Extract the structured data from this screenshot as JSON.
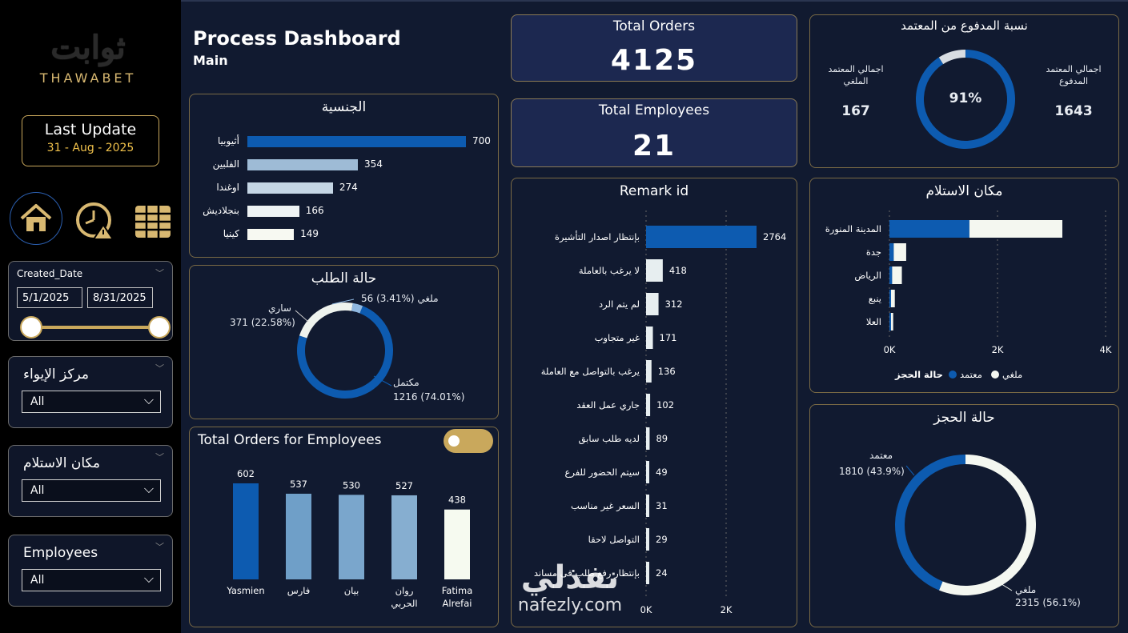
{
  "sidebar": {
    "logo_ar": "ثوابت",
    "logo_en": "THAWABET",
    "last_update_label": "Last Update",
    "last_update_date": "31 - Aug - 2025",
    "nav": [
      "home-icon",
      "alert-clock-icon",
      "table-icon"
    ],
    "date_slicer": {
      "label": "Created_Date",
      "from": "5/1/2025",
      "to": "8/31/2025"
    },
    "slicers": [
      {
        "label": "مركز الإيواء",
        "value": "All"
      },
      {
        "label": "مكان الاستلام",
        "value": "All"
      },
      {
        "label": "Employees",
        "value": "All"
      }
    ]
  },
  "header": {
    "title": "Process Dashboard",
    "subtitle": "Main"
  },
  "kpis": {
    "total_orders_label": "Total Orders",
    "total_orders": "4125",
    "total_employees_label": "Total Employees",
    "total_employees": "21"
  },
  "nationality": {
    "title": "الجنسية",
    "items": [
      {
        "label": "أثيوبيا",
        "value": 700,
        "color": "#0d5bb0"
      },
      {
        "label": "الفلبين",
        "value": 354,
        "color": "#9ebbd6"
      },
      {
        "label": "اوغندا",
        "value": 274,
        "color": "#c5d6e5"
      },
      {
        "label": "بنجلاديش",
        "value": 166,
        "color": "#eef3f4"
      },
      {
        "label": "كينيا",
        "value": 149,
        "color": "#f7f9f2"
      }
    ]
  },
  "order_status": {
    "title": "حالة الطلب",
    "slices": [
      {
        "label": "مكتمل",
        "value": 1216,
        "pct": "74.01%",
        "color": "#0d5bb0"
      },
      {
        "label": "ساري",
        "value": 371,
        "pct": "22.58%",
        "color": "#eef3ee"
      },
      {
        "label": "ملغي",
        "value": 56,
        "pct": "3.41%",
        "color": "#8fb7e0"
      }
    ],
    "labels": {
      "done": "مكتمل",
      "done_val": "1216 (74.01%)",
      "active": "ساري",
      "active_val": "371 (22.58%)",
      "cancel": "56 (3.41%) ملغي"
    }
  },
  "orders_by_employee": {
    "title": "Total Orders for Employees",
    "items": [
      {
        "label": "Yasmien",
        "value": 602,
        "color": "#0d5bb0"
      },
      {
        "label": "فارس",
        "value": 537,
        "color": "#6f9fc8"
      },
      {
        "label": "بيان",
        "value": 530,
        "color": "#7aa6cc"
      },
      {
        "label": "روان الحربي",
        "value": 527,
        "color": "#86aed0"
      },
      {
        "label": "Fatima Alrefai",
        "value": 438,
        "color": "#f6faf0"
      }
    ]
  },
  "remark": {
    "title": "Remark id",
    "items": [
      {
        "label": "بإنتظار اصدار التأشيرة",
        "value": 2764
      },
      {
        "label": "لا يرغب بالعاملة",
        "value": 418
      },
      {
        "label": "لم يتم الرد",
        "value": 312
      },
      {
        "label": "غير متجاوب",
        "value": 171
      },
      {
        "label": "يرغب بالتواصل مع العاملة",
        "value": 136
      },
      {
        "label": "جاري عمل العقد",
        "value": 102
      },
      {
        "label": "لديه طلب سابق",
        "value": 89
      },
      {
        "label": "سيتم الحضور للفرع",
        "value": 49
      },
      {
        "label": "السعر غير مناسب",
        "value": 31
      },
      {
        "label": "التواصل لاحقا",
        "value": 29
      },
      {
        "label": "بإنتظار رفع طلب فى مساند",
        "value": 24
      }
    ],
    "axis": [
      "0K",
      "2K"
    ]
  },
  "paid_ratio": {
    "title": "نسبة المدفوع من المعتمد",
    "pct": "91%",
    "pct_value": 0.91,
    "cancel_label": "اجمالي المعتمد الملغي",
    "cancel_value": "167",
    "paid_label": "اجمالي المعتمد المدفوع",
    "paid_value": "1643"
  },
  "pickup": {
    "title": "مكان الاستلام",
    "items": [
      {
        "label": "المدينة المنورة",
        "approved": 1480,
        "cancelled": 1720
      },
      {
        "label": "جدة",
        "approved": 80,
        "cancelled": 230
      },
      {
        "label": "الرياض",
        "approved": 50,
        "cancelled": 180
      },
      {
        "label": "ينبع",
        "approved": 20,
        "cancelled": 70
      },
      {
        "label": "العلا",
        "approved": 15,
        "cancelled": 40
      }
    ],
    "axis": [
      "0K",
      "2K",
      "4K"
    ],
    "legend_title": "حالة الحجز",
    "legend": [
      {
        "label": "معتمد",
        "color": "#0d5bb0"
      },
      {
        "label": "ملغي",
        "color": "#f4f7f0"
      }
    ]
  },
  "booking_status": {
    "title": "حالة الحجز",
    "slices": [
      {
        "label": "معتمد",
        "value": 1810,
        "pct": "43.9%",
        "color": "#0d5bb0"
      },
      {
        "label": "ملغي",
        "value": 2315,
        "pct": "56.1%",
        "color": "#f4f7f0"
      }
    ],
    "labels": {
      "approved": "معتمد",
      "approved_val": "1810 (43.9%)",
      "cancelled": "ملغي",
      "cancelled_val": "2315 (56.1%)"
    }
  },
  "watermark": {
    "ar": "نفذلي",
    "en": "nafezly.com"
  }
}
